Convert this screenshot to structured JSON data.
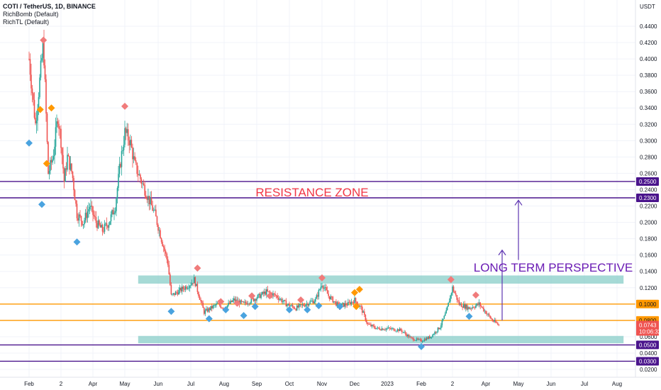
{
  "header": {
    "title": "COTI / TetherUS, 1D, BINANCE",
    "indicators": [
      "RichBomb (Default)",
      "RichTL (Default)"
    ]
  },
  "price_axis": {
    "currency": "USDT",
    "ticks": [
      "0.4400",
      "0.4200",
      "0.4000",
      "0.3800",
      "0.3600",
      "0.3400",
      "0.3200",
      "0.3000",
      "0.2800",
      "0.2600",
      "0.2400",
      "0.2200",
      "0.2000",
      "0.1800",
      "0.1600",
      "0.1400",
      "0.1200",
      "0.1000",
      "0.0800",
      "0.0600",
      "0.0400",
      "0.0200"
    ],
    "tick_values": [
      0.44,
      0.42,
      0.4,
      0.38,
      0.36,
      0.34,
      0.32,
      0.3,
      0.28,
      0.26,
      0.24,
      0.22,
      0.2,
      0.18,
      0.16,
      0.14,
      0.12,
      0.1,
      0.08,
      0.06,
      0.04,
      0.02
    ]
  },
  "price_labels": [
    {
      "text": "0.2500",
      "value": 0.25,
      "color": "#4a148c",
      "text_color": "#ffffff"
    },
    {
      "text": "0.2300",
      "value": 0.23,
      "color": "#4a148c",
      "text_color": "#ffffff"
    },
    {
      "text": "0.1000",
      "value": 0.1,
      "color": "#ff9800",
      "text_color": "#131722"
    },
    {
      "text": "0.0800",
      "value": 0.08,
      "color": "#ff9800",
      "text_color": "#131722"
    },
    {
      "text": "0.0743",
      "value": 0.0743,
      "color": "#ef5350",
      "text_color": "#ffffff"
    },
    {
      "text": "10:06:32",
      "value": 0.0665,
      "color": "#ef5350",
      "text_color": "#ffffff"
    },
    {
      "text": "0.0500",
      "value": 0.05,
      "color": "#4a148c",
      "text_color": "#ffffff"
    },
    {
      "text": "0.0300",
      "value": 0.03,
      "color": "#4a148c",
      "text_color": "#ffffff"
    }
  ],
  "time_axis": {
    "labels": [
      "Feb",
      "2",
      "Apr",
      "May",
      "Jun",
      "Jul",
      "Aug",
      "Sep",
      "Oct",
      "Nov",
      "Dec",
      "2023",
      "Feb",
      "2",
      "Apr",
      "May",
      "Jun",
      "Jul",
      "Aug"
    ],
    "months": [
      1,
      2,
      3,
      4,
      5,
      6,
      7,
      8,
      9,
      10,
      11,
      12,
      13,
      14,
      15,
      16,
      17,
      18,
      19
    ]
  },
  "annotations": {
    "resistance_zone": "RESISTANCE ZONE",
    "long_term": "LONG TERM PERSPECTIVE"
  },
  "colors": {
    "up": "#26a69a",
    "down": "#ef5350",
    "purple_line": "#4a148c",
    "orange_line": "#ff9800",
    "zone_fill": "#80cbc4",
    "red_text": "#f23645",
    "purple_text": "#6a1bb4",
    "arrow": "#5e35b1",
    "diamond_red": "#f07b7b",
    "diamond_orange": "#ff9800",
    "diamond_blue": "#4aa3df"
  },
  "chart_data": {
    "type": "candlestick",
    "symbol": "COTI / TetherUS",
    "interval": "1D",
    "exchange": "BINANCE",
    "ylim": [
      0.01,
      0.46
    ],
    "last_price": 0.0743,
    "horizontal_levels": [
      {
        "value": 0.25,
        "color": "#4a148c"
      },
      {
        "value": 0.23,
        "color": "#4a148c"
      },
      {
        "value": 0.1,
        "color": "#ff9800"
      },
      {
        "value": 0.08,
        "color": "#ff9800"
      },
      {
        "value": 0.05,
        "color": "#4a148c"
      },
      {
        "value": 0.03,
        "color": "#4a148c"
      }
    ],
    "zones": [
      {
        "from_month": 4.4,
        "to_month": 19.2,
        "low": 0.125,
        "high": 0.135
      },
      {
        "from_month": 4.4,
        "to_month": 19.2,
        "low": 0.052,
        "high": 0.061
      }
    ],
    "price_path": [
      [
        0.0,
        0.4
      ],
      [
        0.2,
        0.32
      ],
      [
        0.3,
        0.36
      ],
      [
        0.45,
        0.42
      ],
      [
        0.6,
        0.26
      ],
      [
        0.75,
        0.28
      ],
      [
        0.9,
        0.33
      ],
      [
        1.0,
        0.3
      ],
      [
        1.1,
        0.25
      ],
      [
        1.2,
        0.28
      ],
      [
        1.35,
        0.26
      ],
      [
        1.5,
        0.21
      ],
      [
        1.7,
        0.2
      ],
      [
        1.9,
        0.22
      ],
      [
        2.1,
        0.2
      ],
      [
        2.3,
        0.19
      ],
      [
        2.5,
        0.2
      ],
      [
        2.7,
        0.22
      ],
      [
        2.85,
        0.27
      ],
      [
        3.0,
        0.31
      ],
      [
        3.15,
        0.3
      ],
      [
        3.3,
        0.27
      ],
      [
        3.5,
        0.25
      ],
      [
        3.7,
        0.23
      ],
      [
        3.9,
        0.21
      ],
      [
        4.1,
        0.18
      ],
      [
        4.3,
        0.15
      ],
      [
        4.4,
        0.11
      ],
      [
        4.6,
        0.115
      ],
      [
        4.8,
        0.12
      ],
      [
        5.0,
        0.125
      ],
      [
        5.1,
        0.13
      ],
      [
        5.25,
        0.11
      ],
      [
        5.4,
        0.09
      ],
      [
        5.6,
        0.095
      ],
      [
        5.8,
        0.1
      ],
      [
        6.0,
        0.095
      ],
      [
        6.3,
        0.105
      ],
      [
        6.6,
        0.1
      ],
      [
        7.0,
        0.108
      ],
      [
        7.3,
        0.115
      ],
      [
        7.6,
        0.11
      ],
      [
        7.9,
        0.1
      ],
      [
        8.2,
        0.095
      ],
      [
        8.5,
        0.1
      ],
      [
        8.8,
        0.105
      ],
      [
        9.0,
        0.125
      ],
      [
        9.2,
        0.11
      ],
      [
        9.5,
        0.098
      ],
      [
        9.8,
        0.1
      ],
      [
        10.0,
        0.105
      ],
      [
        10.2,
        0.095
      ],
      [
        10.4,
        0.075
      ],
      [
        10.7,
        0.07
      ],
      [
        11.0,
        0.07
      ],
      [
        11.4,
        0.068
      ],
      [
        11.7,
        0.058
      ],
      [
        12.0,
        0.055
      ],
      [
        12.3,
        0.06
      ],
      [
        12.6,
        0.072
      ],
      [
        12.8,
        0.09
      ],
      [
        13.0,
        0.12
      ],
      [
        13.2,
        0.1
      ],
      [
        13.5,
        0.095
      ],
      [
        13.8,
        0.1
      ],
      [
        14.0,
        0.09
      ],
      [
        14.2,
        0.08
      ],
      [
        14.4,
        0.0743
      ]
    ],
    "markers": [
      {
        "month": 0.45,
        "value": 0.423,
        "color": "red"
      },
      {
        "month": 0.0,
        "value": 0.297,
        "color": "blue"
      },
      {
        "month": 0.35,
        "value": 0.338,
        "color": "orange"
      },
      {
        "month": 0.55,
        "value": 0.272,
        "color": "orange"
      },
      {
        "month": 0.7,
        "value": 0.34,
        "color": "orange"
      },
      {
        "month": 0.4,
        "value": 0.222,
        "color": "blue"
      },
      {
        "month": 1.5,
        "value": 0.176,
        "color": "blue"
      },
      {
        "month": 3.0,
        "value": 0.342,
        "color": "red"
      },
      {
        "month": 4.4,
        "value": 0.091,
        "color": "blue"
      },
      {
        "month": 5.2,
        "value": 0.144,
        "color": "red"
      },
      {
        "month": 5.55,
        "value": 0.082,
        "color": "blue"
      },
      {
        "month": 5.9,
        "value": 0.103,
        "color": "red"
      },
      {
        "month": 6.05,
        "value": 0.093,
        "color": "blue"
      },
      {
        "month": 6.4,
        "value": 0.101,
        "color": "red"
      },
      {
        "month": 6.6,
        "value": 0.086,
        "color": "blue"
      },
      {
        "month": 6.85,
        "value": 0.11,
        "color": "red"
      },
      {
        "month": 6.95,
        "value": 0.097,
        "color": "blue"
      },
      {
        "month": 7.4,
        "value": 0.11,
        "color": "red"
      },
      {
        "month": 8.0,
        "value": 0.093,
        "color": "blue"
      },
      {
        "month": 8.35,
        "value": 0.105,
        "color": "red"
      },
      {
        "month": 8.55,
        "value": 0.093,
        "color": "blue"
      },
      {
        "month": 8.9,
        "value": 0.098,
        "color": "blue"
      },
      {
        "month": 9.0,
        "value": 0.132,
        "color": "red"
      },
      {
        "month": 9.55,
        "value": 0.097,
        "color": "blue"
      },
      {
        "month": 10.0,
        "value": 0.114,
        "color": "orange"
      },
      {
        "month": 10.15,
        "value": 0.118,
        "color": "orange"
      },
      {
        "month": 10.05,
        "value": 0.097,
        "color": "orange"
      },
      {
        "month": 12.0,
        "value": 0.048,
        "color": "blue"
      },
      {
        "month": 12.95,
        "value": 0.13,
        "color": "red"
      },
      {
        "month": 13.5,
        "value": 0.085,
        "color": "blue"
      },
      {
        "month": 13.7,
        "value": 0.111,
        "color": "red"
      }
    ],
    "arrows": [
      {
        "month": 14.5,
        "from": 0.08,
        "to": 0.166
      },
      {
        "month": 15.0,
        "from": 0.154,
        "to": 0.227
      }
    ]
  }
}
